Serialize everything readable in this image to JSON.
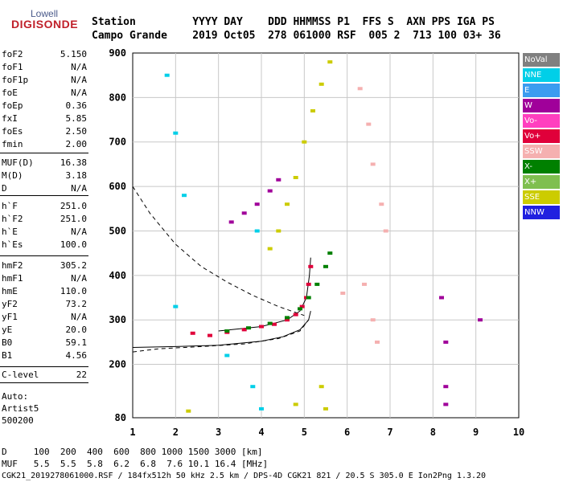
{
  "logo": {
    "top": "Lowell",
    "main": "DIGISONDE"
  },
  "header": {
    "row1": "Station         YYYY DAY    DDD HHMMSS P1  FFS S  AXN PPS IGA PS",
    "row2": "Campo Grande    2019 Oct05  278 061000 RSF  005 2  713 100 03+ 36"
  },
  "params": [
    {
      "name": "foF2",
      "value": "5.150"
    },
    {
      "name": "foF1",
      "value": "N/A"
    },
    {
      "name": "foF1p",
      "value": "N/A"
    },
    {
      "name": "foE",
      "value": "N/A"
    },
    {
      "name": "foEp",
      "value": "0.36"
    },
    {
      "name": "fxI",
      "value": "5.85"
    },
    {
      "name": "foEs",
      "value": "2.50"
    },
    {
      "name": "fmin",
      "value": "2.00"
    },
    {
      "name": "MUF(D)",
      "value": "16.38"
    },
    {
      "name": "M(D)",
      "value": "3.18"
    },
    {
      "name": "D",
      "value": "N/A"
    },
    {
      "name": "h`F",
      "value": "251.0"
    },
    {
      "name": "h`F2",
      "value": "251.0"
    },
    {
      "name": "h`E",
      "value": "N/A"
    },
    {
      "name": "h`Es",
      "value": "100.0"
    },
    {
      "name": "hmF2",
      "value": "305.2"
    },
    {
      "name": "hmF1",
      "value": "N/A"
    },
    {
      "name": "hmE",
      "value": "110.0"
    },
    {
      "name": "yF2",
      "value": "73.2"
    },
    {
      "name": "yF1",
      "value": "N/A"
    },
    {
      "name": "yE",
      "value": "20.0"
    },
    {
      "name": "B0",
      "value": "59.1"
    },
    {
      "name": "B1",
      "value": "4.56"
    },
    {
      "name": "C-level",
      "value": "22"
    }
  ],
  "auto": {
    "line1": "Auto:",
    "line2": "Artist5",
    "line3": "500200"
  },
  "legend": [
    {
      "label": "NoVal",
      "color": "#808080"
    },
    {
      "label": "NNE",
      "color": "#00cfe8"
    },
    {
      "label": "E",
      "color": "#3b9cf0"
    },
    {
      "label": "W",
      "color": "#a0009a"
    },
    {
      "label": "Vo-",
      "color": "#ff3fbf"
    },
    {
      "label": "Vo+",
      "color": "#e0003a"
    },
    {
      "label": "SSW",
      "color": "#f5b0b0"
    },
    {
      "label": "X-",
      "color": "#008000"
    },
    {
      "label": "X+",
      "color": "#7fbf4f"
    },
    {
      "label": "SSE",
      "color": "#cccc00"
    },
    {
      "label": "NNW",
      "color": "#2020e0"
    }
  ],
  "bottom": {
    "d_row": "D     100  200  400  600  800 1000 1500 3000 [km]",
    "muf_row": "MUF   5.5  5.5  5.8  6.2  6.8  7.6 10.1 16.4 [MHz]"
  },
  "footer": "CGK21_2019278061000.RSF / 184fx512h 50 kHz 2.5 km / DPS-4D CGK21 821 / 20.5 S 305.0 E Ion2Png 1.3.20",
  "chart_data": {
    "type": "scatter",
    "xlabel": "",
    "ylabel": "",
    "xlim": [
      1,
      10
    ],
    "ylim": [
      80,
      900
    ],
    "x_ticks": [
      1,
      2,
      3,
      4,
      5,
      6,
      7,
      8,
      9,
      10
    ],
    "y_ticks": [
      80,
      200,
      300,
      400,
      500,
      600,
      700,
      800,
      900
    ],
    "legend_position": "right",
    "grid": true,
    "series": [
      {
        "name": "Vo+",
        "color": "#e0003a",
        "points": [
          [
            2.4,
            270
          ],
          [
            2.8,
            265
          ],
          [
            3.2,
            272
          ],
          [
            3.6,
            278
          ],
          [
            4.0,
            285
          ],
          [
            4.3,
            290
          ],
          [
            4.6,
            300
          ],
          [
            4.8,
            312
          ],
          [
            4.95,
            330
          ],
          [
            5.05,
            350
          ],
          [
            5.1,
            380
          ],
          [
            5.15,
            420
          ]
        ]
      },
      {
        "name": "X-",
        "color": "#008000",
        "points": [
          [
            3.2,
            275
          ],
          [
            3.7,
            282
          ],
          [
            4.2,
            292
          ],
          [
            4.6,
            305
          ],
          [
            4.9,
            325
          ],
          [
            5.1,
            350
          ],
          [
            5.3,
            380
          ],
          [
            5.5,
            420
          ],
          [
            5.6,
            450
          ]
        ]
      },
      {
        "name": "W",
        "color": "#a0009a",
        "points": [
          [
            3.3,
            520
          ],
          [
            3.6,
            540
          ],
          [
            3.9,
            560
          ],
          [
            4.2,
            590
          ],
          [
            4.4,
            615
          ],
          [
            8.2,
            350
          ],
          [
            8.3,
            250
          ],
          [
            8.3,
            150
          ],
          [
            8.3,
            110
          ],
          [
            9.1,
            300
          ]
        ]
      },
      {
        "name": "SSE",
        "color": "#cccc00",
        "points": [
          [
            4.2,
            460
          ],
          [
            4.4,
            500
          ],
          [
            4.6,
            560
          ],
          [
            4.8,
            620
          ],
          [
            5.0,
            700
          ],
          [
            5.2,
            770
          ],
          [
            5.4,
            830
          ],
          [
            5.6,
            880
          ],
          [
            5.4,
            150
          ],
          [
            5.5,
            100
          ],
          [
            2.3,
            95
          ],
          [
            4.8,
            110
          ]
        ]
      },
      {
        "name": "SSW",
        "color": "#f5b0b0",
        "points": [
          [
            6.3,
            820
          ],
          [
            6.5,
            740
          ],
          [
            6.6,
            650
          ],
          [
            6.8,
            560
          ],
          [
            6.9,
            500
          ],
          [
            6.4,
            380
          ],
          [
            6.6,
            300
          ],
          [
            6.7,
            250
          ],
          [
            5.9,
            360
          ]
        ]
      },
      {
        "name": "NNE",
        "color": "#00cfe8",
        "points": [
          [
            1.8,
            850
          ],
          [
            2.0,
            720
          ],
          [
            2.2,
            580
          ],
          [
            2.0,
            330
          ],
          [
            3.2,
            220
          ],
          [
            3.8,
            150
          ],
          [
            4.0,
            100
          ],
          [
            3.9,
            500
          ]
        ]
      }
    ],
    "curves": [
      {
        "name": "profile",
        "style": "solid",
        "points": [
          [
            1.0,
            238
          ],
          [
            2.0,
            240
          ],
          [
            3.0,
            243
          ],
          [
            4.0,
            252
          ],
          [
            4.5,
            262
          ],
          [
            4.9,
            278
          ],
          [
            5.1,
            300
          ],
          [
            5.15,
            320
          ]
        ]
      },
      {
        "name": "profile-upper",
        "style": "solid",
        "points": [
          [
            3.0,
            275
          ],
          [
            4.0,
            285
          ],
          [
            4.6,
            300
          ],
          [
            4.9,
            320
          ],
          [
            5.05,
            350
          ],
          [
            5.12,
            400
          ],
          [
            5.15,
            440
          ]
        ]
      },
      {
        "name": "mufd",
        "style": "dashed",
        "points": [
          [
            1.0,
            600
          ],
          [
            1.4,
            540
          ],
          [
            2.0,
            470
          ],
          [
            2.6,
            420
          ],
          [
            3.2,
            385
          ],
          [
            3.8,
            355
          ],
          [
            4.4,
            330
          ],
          [
            5.0,
            310
          ]
        ]
      },
      {
        "name": "lower",
        "style": "dashed",
        "points": [
          [
            1.0,
            228
          ],
          [
            1.6,
            235
          ],
          [
            2.6,
            240
          ],
          [
            3.6,
            246
          ],
          [
            4.4,
            258
          ],
          [
            4.9,
            275
          ],
          [
            5.1,
            300
          ]
        ]
      }
    ]
  }
}
